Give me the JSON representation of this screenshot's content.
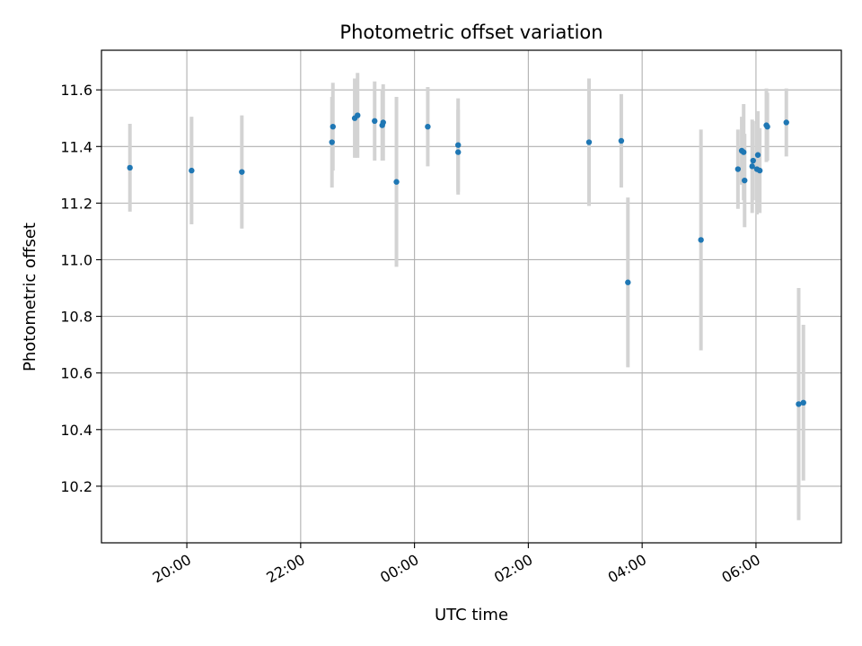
{
  "chart_data": {
    "type": "scatter",
    "title": "Photometric offset variation",
    "xlabel": "UTC time",
    "ylabel": "Photometric offset",
    "grid": true,
    "x_axis": {
      "kind": "time",
      "range": [
        "18:30",
        "07:30"
      ],
      "ticks": [
        "20:00",
        "22:00",
        "00:00",
        "02:00",
        "04:00",
        "06:00"
      ]
    },
    "y_axis": {
      "range": [
        10.0,
        11.74
      ],
      "ticks": [
        10.2,
        10.4,
        10.6,
        10.8,
        11.0,
        11.2,
        11.4,
        11.6
      ]
    },
    "colors": {
      "point": "#1f77b4",
      "errorbar": "#d3d3d3",
      "grid": "#b0b0b0"
    },
    "points": [
      {
        "t": "19:00",
        "y": 11.325,
        "err": 0.155
      },
      {
        "t": "20:05",
        "y": 11.315,
        "err": 0.19
      },
      {
        "t": "20:58",
        "y": 11.31,
        "err": 0.2
      },
      {
        "t": "22:33",
        "y": 11.415,
        "err": 0.16
      },
      {
        "t": "22:34",
        "y": 11.47,
        "err": 0.155
      },
      {
        "t": "22:57",
        "y": 11.5,
        "err": 0.14
      },
      {
        "t": "23:00",
        "y": 11.51,
        "err": 0.15
      },
      {
        "t": "23:18",
        "y": 11.49,
        "err": 0.14
      },
      {
        "t": "23:26",
        "y": 11.475,
        "err": 0.125
      },
      {
        "t": "23:27",
        "y": 11.485,
        "err": 0.135
      },
      {
        "t": "23:41",
        "y": 11.275,
        "err": 0.3
      },
      {
        "t": "00:14",
        "y": 11.47,
        "err": 0.14
      },
      {
        "t": "00:46",
        "y": 11.405,
        "err": 0.165
      },
      {
        "t": "00:46",
        "y": 11.38,
        "err": 0.15
      },
      {
        "t": "03:04",
        "y": 11.415,
        "err": 0.225
      },
      {
        "t": "03:38",
        "y": 11.42,
        "err": 0.165
      },
      {
        "t": "03:45",
        "y": 10.92,
        "err": 0.3
      },
      {
        "t": "05:02",
        "y": 11.07,
        "err": 0.39
      },
      {
        "t": "05:41",
        "y": 11.32,
        "err": 0.14
      },
      {
        "t": "05:45",
        "y": 11.385,
        "err": 0.12
      },
      {
        "t": "05:47",
        "y": 11.38,
        "err": 0.17
      },
      {
        "t": "05:48",
        "y": 11.28,
        "err": 0.165
      },
      {
        "t": "05:56",
        "y": 11.33,
        "err": 0.165
      },
      {
        "t": "05:57",
        "y": 11.35,
        "err": 0.14
      },
      {
        "t": "06:01",
        "y": 11.32,
        "err": 0.16
      },
      {
        "t": "06:02",
        "y": 11.37,
        "err": 0.155
      },
      {
        "t": "06:04",
        "y": 11.315,
        "err": 0.15
      },
      {
        "t": "06:11",
        "y": 11.475,
        "err": 0.13
      },
      {
        "t": "06:12",
        "y": 11.47,
        "err": 0.12
      },
      {
        "t": "06:32",
        "y": 11.485,
        "err": 0.12
      },
      {
        "t": "06:45",
        "y": 10.49,
        "err": 0.41
      },
      {
        "t": "06:50",
        "y": 10.495,
        "err": 0.275
      }
    ]
  }
}
